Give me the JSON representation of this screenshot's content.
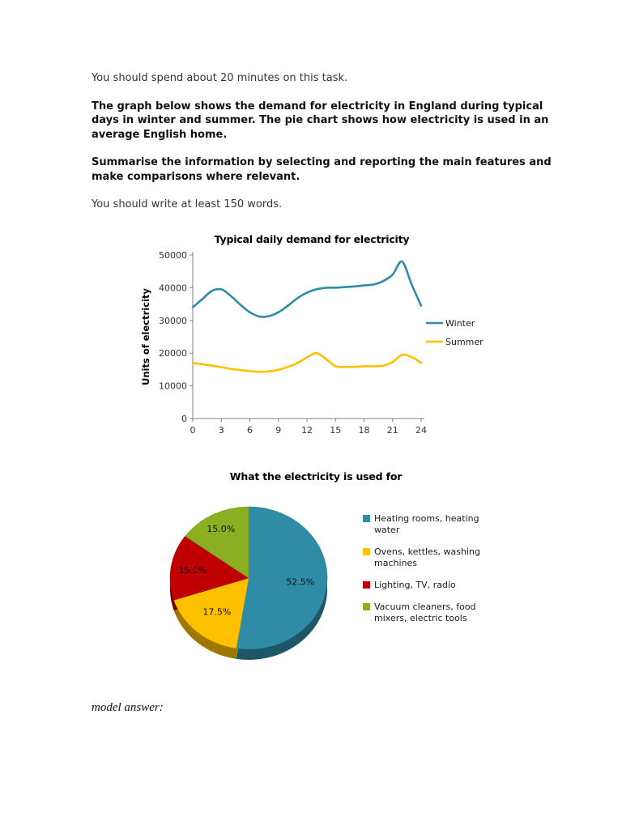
{
  "page": {
    "background": "#ffffff"
  },
  "instructions": {
    "time_note": "You should spend about 20 minutes on this task.",
    "task_description": "The graph below shows the demand for electricity in England during typical days in winter and summer. The pie chart shows how electricity is used in an average English home.",
    "summary_instruction": "Summarise the information by selecting and reporting the main features and make comparisons where relevant.",
    "word_count_note": "You should write at least 150 words.",
    "model_answer_label": "model answer:"
  },
  "chart_data": [
    {
      "type": "line",
      "title": "Typical daily demand for electricity",
      "xlabel": "",
      "ylabel": "Units of electricity",
      "ylim": [
        0,
        50000
      ],
      "yticks": [
        0,
        10000,
        20000,
        30000,
        40000,
        50000
      ],
      "xticks": [
        0,
        3,
        6,
        9,
        12,
        15,
        18,
        21,
        24
      ],
      "grid": false,
      "legend_position": "right",
      "x": [
        0,
        1,
        2,
        3,
        4,
        5,
        6,
        7,
        8,
        9,
        10,
        11,
        12,
        13,
        14,
        15,
        16,
        17,
        18,
        19,
        20,
        21,
        22,
        23,
        24
      ],
      "series": [
        {
          "name": "Winter",
          "color": "#2E8CA6",
          "values": [
            34000,
            36500,
            39000,
            39500,
            37500,
            34800,
            32500,
            31200,
            31300,
            32500,
            34500,
            36800,
            38500,
            39500,
            40000,
            40000,
            40200,
            40400,
            40700,
            41000,
            42000,
            44000,
            48000,
            41000,
            34500
          ]
        },
        {
          "name": "Summer",
          "color": "#FFC000",
          "values": [
            17000,
            16600,
            16200,
            15700,
            15200,
            14800,
            14500,
            14300,
            14400,
            14900,
            15800,
            17000,
            18700,
            20000,
            18200,
            16000,
            15800,
            15800,
            16000,
            16000,
            16200,
            17300,
            19500,
            18800,
            17000
          ]
        }
      ]
    },
    {
      "type": "pie",
      "title": "What the electricity is used for",
      "legend_position": "right",
      "slices": [
        {
          "label": "Heating rooms, heating water",
          "value": 52.5,
          "display": "52.5%",
          "color": "#2E8CA6"
        },
        {
          "label": "Ovens, kettles, washing machines",
          "value": 17.5,
          "display": "17.5%",
          "color": "#FFC000"
        },
        {
          "label": "Lighting, TV, radio",
          "value": 15.0,
          "display": "15.0%",
          "color": "#C00000"
        },
        {
          "label": "Vacuum cleaners, food mixers, electric tools",
          "value": 15.0,
          "display": "15.0%",
          "color": "#8CAF21"
        }
      ]
    }
  ]
}
